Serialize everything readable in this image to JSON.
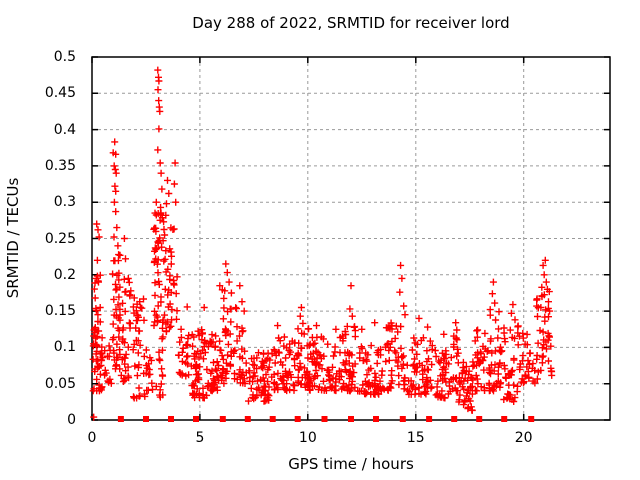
{
  "chart_data": {
    "type": "scatter",
    "title": "Day 288 of 2022, SRMTID for receiver lord",
    "xlabel": "GPS time / hours",
    "ylabel": "SRMTID / TECUs",
    "xlim": [
      0,
      24
    ],
    "ylim": [
      0,
      0.5
    ],
    "x_ticks": [
      0,
      5,
      10,
      15,
      20
    ],
    "x_tick_labels": [
      "0",
      "5",
      "10",
      "15",
      "20"
    ],
    "y_ticks": [
      0,
      0.05,
      0.1,
      0.15,
      0.2,
      0.25,
      0.3,
      0.35,
      0.4,
      0.45,
      0.5
    ],
    "y_tick_labels": [
      "0",
      "0.05",
      "0.1",
      "0.15",
      "0.2",
      "0.25",
      "0.3",
      "0.35",
      "0.4",
      "0.45",
      "0.5"
    ],
    "grid": true,
    "legend": "none",
    "colors": {
      "marker": "#ff0000",
      "grid": "#9a9a9a",
      "border": "#000000",
      "text": "#000000",
      "background": "#ffffff"
    },
    "seed": 7,
    "series": [
      {
        "name": "srmtid-scatter",
        "marker": "plus",
        "outlier_points": [
          [
            0.22,
            0.27
          ],
          [
            0.28,
            0.262
          ],
          [
            0.33,
            0.252
          ],
          [
            0.25,
            0.22
          ],
          [
            0.2,
            0.195
          ],
          [
            0.3,
            0.19
          ],
          [
            0.15,
            0.168
          ],
          [
            0.38,
            0.155
          ],
          [
            1.05,
            0.383
          ],
          [
            0.98,
            0.368
          ],
          [
            1.1,
            0.366
          ],
          [
            1.03,
            0.35
          ],
          [
            1.08,
            0.345
          ],
          [
            1.12,
            0.34
          ],
          [
            1.06,
            0.322
          ],
          [
            1.1,
            0.315
          ],
          [
            1.04,
            0.3
          ],
          [
            1.1,
            0.287
          ],
          [
            1.15,
            0.265
          ],
          [
            1.02,
            0.252
          ],
          [
            1.2,
            0.24
          ],
          [
            1.5,
            0.25
          ],
          [
            1.55,
            0.222
          ],
          [
            3.05,
            0.482
          ],
          [
            3.08,
            0.472
          ],
          [
            3.1,
            0.467
          ],
          [
            3.06,
            0.455
          ],
          [
            3.09,
            0.44
          ],
          [
            3.12,
            0.431
          ],
          [
            3.14,
            0.425
          ],
          [
            3.1,
            0.401
          ],
          [
            3.05,
            0.372
          ],
          [
            3.16,
            0.354
          ],
          [
            3.2,
            0.34
          ],
          [
            3.24,
            0.318
          ],
          [
            2.98,
            0.3
          ],
          [
            2.92,
            0.285
          ],
          [
            3.5,
            0.33
          ],
          [
            3.56,
            0.312
          ],
          [
            3.45,
            0.298
          ],
          [
            3.42,
            0.282
          ],
          [
            3.85,
            0.354
          ],
          [
            3.82,
            0.325
          ],
          [
            3.88,
            0.3
          ],
          [
            5.2,
            0.155
          ],
          [
            5.92,
            0.185
          ],
          [
            6.2,
            0.215
          ],
          [
            6.27,
            0.203
          ],
          [
            6.35,
            0.19
          ],
          [
            6.15,
            0.178
          ],
          [
            6.85,
            0.185
          ],
          [
            6.95,
            0.163
          ],
          [
            7.05,
            0.15
          ],
          [
            8.6,
            0.13
          ],
          [
            9.7,
            0.155
          ],
          [
            9.65,
            0.143
          ],
          [
            9.77,
            0.133
          ],
          [
            10.4,
            0.13
          ],
          [
            11.3,
            0.125
          ],
          [
            12.0,
            0.185
          ],
          [
            11.95,
            0.153
          ],
          [
            12.06,
            0.143
          ],
          [
            12.5,
            0.125
          ],
          [
            13.1,
            0.134
          ],
          [
            13.9,
            0.13
          ],
          [
            14.3,
            0.213
          ],
          [
            14.36,
            0.195
          ],
          [
            14.26,
            0.176
          ],
          [
            14.44,
            0.157
          ],
          [
            14.5,
            0.145
          ],
          [
            15.15,
            0.14
          ],
          [
            15.55,
            0.128
          ],
          [
            16.3,
            0.118
          ],
          [
            16.85,
            0.134
          ],
          [
            16.9,
            0.124
          ],
          [
            18.6,
            0.19
          ],
          [
            18.55,
            0.174
          ],
          [
            18.66,
            0.161
          ],
          [
            18.45,
            0.152
          ],
          [
            19.5,
            0.159
          ],
          [
            19.43,
            0.147
          ],
          [
            19.6,
            0.138
          ],
          [
            20.9,
            0.213
          ],
          [
            21.0,
            0.22
          ],
          [
            20.95,
            0.2
          ],
          [
            21.05,
            0.19
          ],
          [
            21.1,
            0.18
          ],
          [
            20.85,
            0.17
          ],
          [
            21.15,
            0.163
          ],
          [
            20.8,
            0.155
          ],
          [
            21.2,
            0.15
          ],
          [
            0.08,
            0.004
          ]
        ],
        "clusters": [
          [
            0.05,
            0.5,
            48,
            0.04,
            0.145,
            1.6
          ],
          [
            0.1,
            0.4,
            8,
            0.145,
            0.2,
            1.2
          ],
          [
            0.55,
            0.95,
            12,
            0.05,
            0.11,
            1.4
          ],
          [
            0.95,
            1.3,
            42,
            0.07,
            0.235,
            1.5
          ],
          [
            1.35,
            1.8,
            32,
            0.05,
            0.2,
            1.6
          ],
          [
            1.9,
            2.45,
            38,
            0.03,
            0.17,
            1.5
          ],
          [
            2.5,
            2.85,
            14,
            0.04,
            0.115,
            1.3
          ],
          [
            2.85,
            3.35,
            46,
            0.13,
            0.3,
            1.25
          ],
          [
            2.95,
            3.3,
            16,
            0.03,
            0.13,
            1.2
          ],
          [
            3.35,
            3.75,
            28,
            0.12,
            0.27,
            1.3
          ],
          [
            3.78,
            3.95,
            8,
            0.12,
            0.28,
            1.2
          ],
          [
            4.0,
            4.55,
            26,
            0.06,
            0.17,
            1.5
          ],
          [
            4.6,
            5.35,
            56,
            0.03,
            0.125,
            1.5
          ],
          [
            5.35,
            6.0,
            42,
            0.04,
            0.12,
            1.5
          ],
          [
            6.0,
            6.5,
            34,
            0.05,
            0.185,
            1.4
          ],
          [
            6.55,
            7.15,
            30,
            0.05,
            0.155,
            1.5
          ],
          [
            7.2,
            8.25,
            62,
            0.025,
            0.095,
            1.4
          ],
          [
            8.3,
            9.4,
            58,
            0.04,
            0.115,
            1.5
          ],
          [
            9.45,
            10.15,
            48,
            0.04,
            0.13,
            1.5
          ],
          [
            10.2,
            11.35,
            62,
            0.04,
            0.115,
            1.5
          ],
          [
            11.4,
            12.25,
            52,
            0.04,
            0.13,
            1.5
          ],
          [
            12.3,
            13.55,
            62,
            0.035,
            0.105,
            1.5
          ],
          [
            13.6,
            14.5,
            48,
            0.04,
            0.135,
            1.4
          ],
          [
            14.55,
            15.85,
            58,
            0.035,
            0.115,
            1.5
          ],
          [
            15.9,
            16.65,
            40,
            0.03,
            0.105,
            1.4
          ],
          [
            16.7,
            17.0,
            18,
            0.04,
            0.12,
            1.4
          ],
          [
            17.0,
            17.65,
            46,
            0.012,
            0.08,
            1.3
          ],
          [
            17.7,
            18.25,
            30,
            0.04,
            0.125,
            1.4
          ],
          [
            18.3,
            19.0,
            42,
            0.04,
            0.15,
            1.4
          ],
          [
            19.05,
            19.75,
            38,
            0.025,
            0.13,
            1.4
          ],
          [
            19.8,
            20.55,
            30,
            0.05,
            0.12,
            1.4
          ],
          [
            20.6,
            21.3,
            40,
            0.05,
            0.185,
            1.3
          ]
        ]
      },
      {
        "name": "baseline-squares",
        "marker": "filled-square",
        "y": 0,
        "x_values": [
          1.34,
          2.5,
          3.66,
          4.82,
          6.06,
          7.22,
          8.37,
          9.53,
          10.77,
          12.0,
          13.16,
          14.4,
          15.62,
          16.78,
          17.94,
          19.1,
          20.35
        ]
      }
    ]
  }
}
